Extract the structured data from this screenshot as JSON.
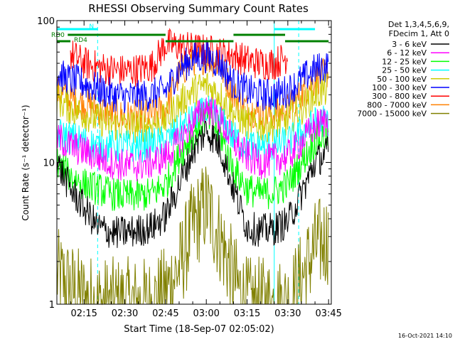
{
  "chart_data": {
    "type": "line",
    "title": "RHESSI Observing Summary Count Rates",
    "xlabel": "Start Time (18-Sep-07 02:05:02)",
    "ylabel": "Count Rate (s⁻¹ detector⁻¹)",
    "yscale": "log",
    "xlim_minutes": [
      125,
      226
    ],
    "ylim": [
      1,
      100
    ],
    "x_tick_labels": [
      "02:15",
      "02:30",
      "02:45",
      "03:00",
      "03:15",
      "03:30",
      "03:45"
    ],
    "y_tick_labels": [
      "1",
      "10",
      "100"
    ],
    "legend_header": [
      "Det 1,3,4,5,6,9,",
      "FDecim 1, Att 0"
    ],
    "legend_position": "right",
    "series": [
      {
        "name": "3 - 6 keV",
        "color": "#000000",
        "x": [
          "02:05",
          "02:10",
          "02:15",
          "02:20",
          "02:25",
          "02:30",
          "02:35",
          "02:40",
          "02:45",
          "02:50",
          "02:55",
          "03:00",
          "03:05",
          "03:10",
          "03:15",
          "03:20",
          "03:25",
          "03:30",
          "03:35",
          "03:40",
          "03:45"
        ],
        "values": [
          10,
          6.5,
          4.8,
          3.5,
          3.2,
          3.2,
          3.3,
          3.5,
          4.2,
          7,
          12,
          17,
          13,
          6.5,
          3.5,
          3.3,
          3.4,
          3.8,
          6,
          10,
          12
        ]
      },
      {
        "name": "6 - 12 keV",
        "color": "#ff00ff",
        "x": [
          "02:05",
          "02:10",
          "02:15",
          "02:20",
          "02:25",
          "02:30",
          "02:35",
          "02:40",
          "02:45",
          "02:50",
          "02:55",
          "03:00",
          "03:05",
          "03:10",
          "03:15",
          "03:20",
          "03:25",
          "03:30",
          "03:35",
          "03:40",
          "03:45"
        ],
        "values": [
          15,
          13,
          12,
          11,
          10,
          9.5,
          9.5,
          10,
          11,
          14,
          19,
          25,
          20,
          14,
          11,
          10,
          10.5,
          11,
          14,
          18,
          20
        ]
      },
      {
        "name": "12 - 25 keV",
        "color": "#00ff00",
        "x": [
          "02:05",
          "02:10",
          "02:15",
          "02:20",
          "02:25",
          "02:30",
          "02:35",
          "02:40",
          "02:45",
          "02:50",
          "02:55",
          "03:00",
          "03:05",
          "03:10",
          "03:15",
          "03:20",
          "03:25",
          "03:30",
          "03:35",
          "03:40",
          "03:45"
        ],
        "values": [
          10,
          8,
          7,
          6.5,
          6,
          5.8,
          5.8,
          6,
          7,
          11,
          16,
          21,
          16,
          9,
          6.5,
          6,
          6.2,
          7,
          10,
          14,
          16
        ]
      },
      {
        "name": "25 - 50 keV",
        "color": "#00ffff",
        "x": [
          "02:05",
          "02:10",
          "02:15",
          "02:20",
          "02:25",
          "02:30",
          "02:35",
          "02:40",
          "02:45",
          "02:50",
          "02:55",
          "03:00",
          "03:05",
          "03:10",
          "03:15",
          "03:20",
          "03:25",
          "03:30",
          "03:35",
          "03:40",
          "03:45"
        ],
        "values": [
          16,
          15,
          14,
          13,
          13,
          13,
          13,
          13.5,
          14,
          17,
          20,
          23,
          20,
          15,
          13,
          13,
          13,
          14,
          16,
          19,
          20
        ]
      },
      {
        "name": "50 - 100 keV",
        "color": "#cccc00",
        "x": [
          "02:05",
          "02:10",
          "02:15",
          "02:20",
          "02:25",
          "02:30",
          "02:35",
          "02:40",
          "02:45",
          "02:50",
          "02:55",
          "03:00",
          "03:05",
          "03:10",
          "03:15",
          "03:20",
          "03:25",
          "03:30",
          "03:35",
          "03:40",
          "03:45"
        ],
        "values": [
          28,
          24,
          22,
          20,
          18.5,
          18,
          18,
          18.5,
          20,
          26,
          32,
          35,
          30,
          22,
          19,
          18,
          18.5,
          20,
          24,
          30,
          33
        ]
      },
      {
        "name": "100 - 300 keV",
        "color": "#0000ff",
        "x": [
          "02:05",
          "02:10",
          "02:15",
          "02:20",
          "02:25",
          "02:30",
          "02:35",
          "02:40",
          "02:45",
          "02:50",
          "02:55",
          "03:00",
          "03:05",
          "03:10",
          "03:15",
          "03:20",
          "03:25",
          "03:30",
          "03:35",
          "03:40",
          "03:45"
        ],
        "values": [
          42,
          38,
          36,
          33,
          30,
          29,
          29,
          30,
          32,
          45,
          54,
          56,
          50,
          36,
          32,
          30,
          30,
          32,
          38,
          45,
          48
        ]
      },
      {
        "name": "300 - 800 keV",
        "color": "#ff0000",
        "x": [
          "02:10",
          "02:15",
          "02:20",
          "02:25",
          "02:30",
          "02:35",
          "02:40",
          "02:45",
          "03:10",
          "03:15",
          "03:20",
          "03:25",
          "03:30"
        ],
        "values": [
          58,
          50,
          47,
          45,
          44,
          45,
          48,
          68,
          57,
          52,
          50,
          50,
          56
        ]
      },
      {
        "name": "800 - 7000 keV",
        "color": "#ff8000",
        "x": [
          "02:05",
          "02:10",
          "02:15",
          "02:20",
          "02:25",
          "02:30",
          "02:35",
          "02:40",
          "02:45",
          "02:50",
          "02:55",
          "03:00",
          "03:05",
          "03:10",
          "03:15",
          "03:20",
          "03:25",
          "03:30",
          "03:35",
          "03:40",
          "03:45"
        ],
        "values": [
          32,
          28,
          26,
          24,
          22,
          21,
          21,
          22,
          24,
          42,
          53,
          55,
          49,
          30,
          24,
          22,
          22,
          24,
          30,
          38,
          44
        ]
      },
      {
        "name": "7000 - 15000 keV",
        "color": "#808000",
        "x": [
          "02:05",
          "02:10",
          "02:15",
          "02:20",
          "02:25",
          "02:30",
          "02:35",
          "02:40",
          "02:45",
          "02:50",
          "02:55",
          "03:00",
          "03:05",
          "03:10",
          "03:15",
          "03:20",
          "03:25",
          "03:30",
          "03:35",
          "03:40",
          "03:45"
        ],
        "values": [
          1.6,
          1.3,
          1.1,
          1,
          1,
          1,
          1,
          1,
          1.2,
          1.8,
          3.5,
          5,
          3,
          1.5,
          1,
          1,
          1,
          1,
          1.5,
          2.5,
          3
        ]
      }
    ],
    "vertical_lines": [
      {
        "time": "02:05",
        "style": "solid",
        "color": "#00ffff"
      },
      {
        "time": "02:20",
        "style": "dashed",
        "color": "#00ffff"
      },
      {
        "time": "03:25",
        "style": "solid",
        "color": "#00ffff"
      },
      {
        "time": "03:34",
        "style": "dashed",
        "color": "#00ffff"
      }
    ],
    "state_bars": [
      {
        "label": "N",
        "color": "#00ffff",
        "level": "top",
        "start": "02:05",
        "end": "02:20"
      },
      {
        "label": "",
        "color": "#00ffff",
        "level": "top",
        "start": "03:25",
        "end": "03:40"
      },
      {
        "label": "RD0",
        "color": "#008000",
        "level": "middle",
        "start": "02:09",
        "end": "02:45"
      },
      {
        "label": "",
        "color": "#008000",
        "level": "middle",
        "start": "03:10",
        "end": "03:29"
      },
      {
        "label": "RD4",
        "color": "#008000",
        "level": "low",
        "start": "02:05",
        "end": "02:10"
      },
      {
        "label": "",
        "color": "#008000",
        "level": "low",
        "start": "02:45",
        "end": "03:10"
      },
      {
        "label": "",
        "color": "#008000",
        "level": "low",
        "start": "03:29",
        "end": "03:45"
      }
    ]
  },
  "footer": {
    "date_stamp": "16-Oct-2021 14:10"
  }
}
